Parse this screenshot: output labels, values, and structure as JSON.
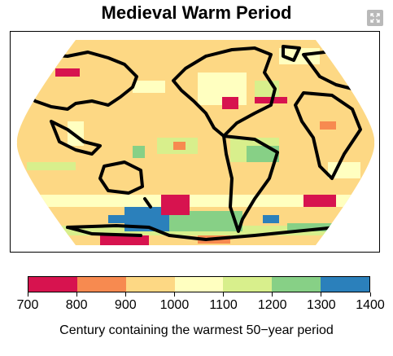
{
  "title": "Medieval Warm Period",
  "expand_icon": "expand-arrows-icon",
  "colorbar": {
    "label": "Century containing the warmest 50−year period",
    "ticks": [
      "700",
      "800",
      "900",
      "1000",
      "1100",
      "1200",
      "1300",
      "1400"
    ],
    "bins": [
      {
        "from": 700,
        "to": 800,
        "color": "#d7134f"
      },
      {
        "from": 800,
        "to": 900,
        "color": "#f78a50"
      },
      {
        "from": 900,
        "to": 1000,
        "color": "#fdd884"
      },
      {
        "from": 1000,
        "to": 1100,
        "color": "#ffffc0"
      },
      {
        "from": 1100,
        "to": 1200,
        "color": "#d8ef8c"
      },
      {
        "from": 1200,
        "to": 1300,
        "color": "#87d086"
      },
      {
        "from": 1300,
        "to": 1400,
        "color": "#2b80bb"
      }
    ]
  },
  "map": {
    "projection": "robinson",
    "dominant_color": "#fdd884",
    "coastline_color": "#000000"
  }
}
